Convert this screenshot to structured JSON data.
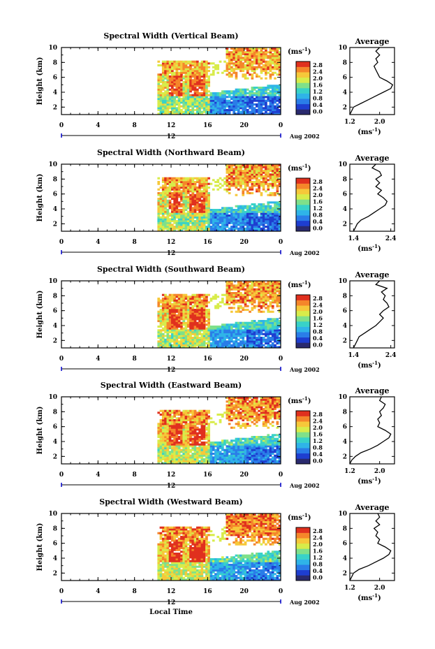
{
  "figure": {
    "xlabel": "Local Time",
    "date_label": "Aug 2002",
    "time_axis_label": "12",
    "unit": "(ms",
    "unit_sup": "-1",
    "unit_close": ")",
    "avg_title": "Average",
    "avg_unit": "(ms",
    "avg_unit_sup": "-1",
    "avg_unit_close": ")"
  },
  "colorbar": {
    "ticks": [
      "0.0",
      "0.4",
      "0.8",
      "1.2",
      "1.6",
      "2.0",
      "2.4",
      "2.8"
    ],
    "colors": [
      "#2a2a6e",
      "#1e3ed0",
      "#2a7de8",
      "#2fb4e8",
      "#38d2c8",
      "#7fe08a",
      "#d8ec4a",
      "#f6c83a",
      "#f5862a",
      "#e0301e"
    ]
  },
  "chart_data": [
    {
      "type": "heatmap",
      "title": "Spectral Width (Vertical Beam)",
      "ylabel": "Height (km)",
      "xlim": [
        0,
        24
      ],
      "ylim": [
        1,
        10
      ],
      "xticks": [
        "0",
        "4",
        "8",
        "12",
        "16",
        "20",
        "0"
      ],
      "yticks": [
        "2",
        "4",
        "6",
        "8",
        "10"
      ],
      "avg_xticks": [
        "1.2",
        "2.0"
      ],
      "avg_xlim": [
        1.2,
        2.4
      ],
      "avg_profile": [
        [
          1.2,
          1.0
        ],
        [
          1.25,
          1.5
        ],
        [
          1.3,
          2.0
        ],
        [
          1.5,
          2.5
        ],
        [
          1.7,
          3.0
        ],
        [
          1.9,
          3.5
        ],
        [
          2.1,
          4.0
        ],
        [
          2.3,
          4.5
        ],
        [
          2.35,
          5.0
        ],
        [
          2.2,
          5.5
        ],
        [
          2.0,
          6.0
        ],
        [
          1.95,
          6.5
        ],
        [
          1.9,
          7.0
        ],
        [
          1.85,
          7.5
        ],
        [
          1.95,
          8.0
        ],
        [
          1.9,
          8.5
        ],
        [
          2.0,
          9.0
        ],
        [
          1.9,
          9.5
        ],
        [
          2.0,
          10.0
        ]
      ]
    },
    {
      "type": "heatmap",
      "title": "Spectral Width (Northward Beam)",
      "ylabel": "Height (km)",
      "xlim": [
        0,
        24
      ],
      "ylim": [
        1,
        10
      ],
      "xticks": [
        "0",
        "4",
        "8",
        "12",
        "16",
        "20",
        "0"
      ],
      "yticks": [
        "2",
        "4",
        "6",
        "8",
        "10"
      ],
      "avg_xticks": [
        "1.4",
        "2.4"
      ],
      "avg_xlim": [
        1.3,
        2.5
      ],
      "avg_profile": [
        [
          1.4,
          1.0
        ],
        [
          1.45,
          1.5
        ],
        [
          1.5,
          2.0
        ],
        [
          1.6,
          2.5
        ],
        [
          1.8,
          3.0
        ],
        [
          1.95,
          3.5
        ],
        [
          2.1,
          4.0
        ],
        [
          2.25,
          4.5
        ],
        [
          2.3,
          5.0
        ],
        [
          2.2,
          5.5
        ],
        [
          2.05,
          6.0
        ],
        [
          2.15,
          6.5
        ],
        [
          2.0,
          7.0
        ],
        [
          2.1,
          7.5
        ],
        [
          2.0,
          8.0
        ],
        [
          2.15,
          8.5
        ],
        [
          2.1,
          9.0
        ],
        [
          1.9,
          9.5
        ],
        [
          2.0,
          10.0
        ]
      ]
    },
    {
      "type": "heatmap",
      "title": "Spectral Width (Southward Beam)",
      "ylabel": "Height (km)",
      "xlim": [
        0,
        24
      ],
      "ylim": [
        1,
        10
      ],
      "xticks": [
        "0",
        "4",
        "8",
        "12",
        "16",
        "20",
        "0"
      ],
      "yticks": [
        "2",
        "4",
        "6",
        "8",
        "10"
      ],
      "avg_xticks": [
        "1.4",
        "2.4"
      ],
      "avg_xlim": [
        1.3,
        2.5
      ],
      "avg_profile": [
        [
          1.4,
          1.0
        ],
        [
          1.45,
          1.5
        ],
        [
          1.5,
          2.0
        ],
        [
          1.55,
          2.5
        ],
        [
          1.7,
          3.0
        ],
        [
          1.85,
          3.5
        ],
        [
          2.0,
          4.0
        ],
        [
          2.1,
          4.5
        ],
        [
          2.2,
          5.0
        ],
        [
          2.1,
          5.5
        ],
        [
          2.2,
          6.0
        ],
        [
          2.35,
          6.5
        ],
        [
          2.3,
          7.0
        ],
        [
          2.2,
          7.5
        ],
        [
          2.25,
          8.0
        ],
        [
          2.15,
          8.5
        ],
        [
          2.3,
          9.0
        ],
        [
          2.0,
          9.5
        ],
        [
          2.1,
          10.0
        ]
      ]
    },
    {
      "type": "heatmap",
      "title": "Spectral Width (Eastward Beam)",
      "ylabel": "Height (km)",
      "xlim": [
        0,
        24
      ],
      "ylim": [
        1,
        10
      ],
      "xticks": [
        "0",
        "4",
        "8",
        "12",
        "16",
        "20",
        "0"
      ],
      "yticks": [
        "2",
        "4",
        "6",
        "8",
        "10"
      ],
      "avg_xticks": [
        "1.2",
        "2.0"
      ],
      "avg_xlim": [
        1.2,
        2.4
      ],
      "avg_profile": [
        [
          1.2,
          1.0
        ],
        [
          1.25,
          1.5
        ],
        [
          1.35,
          2.0
        ],
        [
          1.5,
          2.5
        ],
        [
          1.75,
          3.0
        ],
        [
          1.95,
          3.5
        ],
        [
          2.1,
          4.0
        ],
        [
          2.25,
          4.5
        ],
        [
          2.3,
          5.0
        ],
        [
          2.15,
          5.5
        ],
        [
          1.95,
          6.0
        ],
        [
          2.0,
          6.5
        ],
        [
          1.95,
          7.0
        ],
        [
          2.05,
          7.5
        ],
        [
          2.0,
          8.0
        ],
        [
          2.1,
          8.5
        ],
        [
          2.15,
          9.0
        ],
        [
          2.0,
          9.5
        ],
        [
          2.05,
          10.0
        ]
      ]
    },
    {
      "type": "heatmap",
      "title": "Spectral Width (Westward Beam)",
      "ylabel": "Height (km)",
      "xlim": [
        0,
        24
      ],
      "ylim": [
        1,
        10
      ],
      "xticks": [
        "0",
        "4",
        "8",
        "12",
        "16",
        "20",
        "0"
      ],
      "yticks": [
        "2",
        "4",
        "6",
        "8",
        "10"
      ],
      "avg_xticks": [
        "1.2",
        "2.0"
      ],
      "avg_xlim": [
        1.2,
        2.4
      ],
      "avg_profile": [
        [
          1.2,
          1.0
        ],
        [
          1.25,
          1.5
        ],
        [
          1.3,
          2.0
        ],
        [
          1.45,
          2.5
        ],
        [
          1.7,
          3.0
        ],
        [
          1.9,
          3.5
        ],
        [
          2.1,
          4.0
        ],
        [
          2.25,
          4.5
        ],
        [
          2.3,
          5.0
        ],
        [
          2.15,
          5.5
        ],
        [
          1.95,
          6.0
        ],
        [
          2.0,
          6.5
        ],
        [
          1.9,
          7.0
        ],
        [
          1.95,
          7.5
        ],
        [
          1.85,
          8.0
        ],
        [
          2.0,
          8.5
        ],
        [
          1.9,
          9.0
        ],
        [
          2.0,
          9.5
        ],
        [
          1.95,
          10.0
        ]
      ]
    }
  ]
}
